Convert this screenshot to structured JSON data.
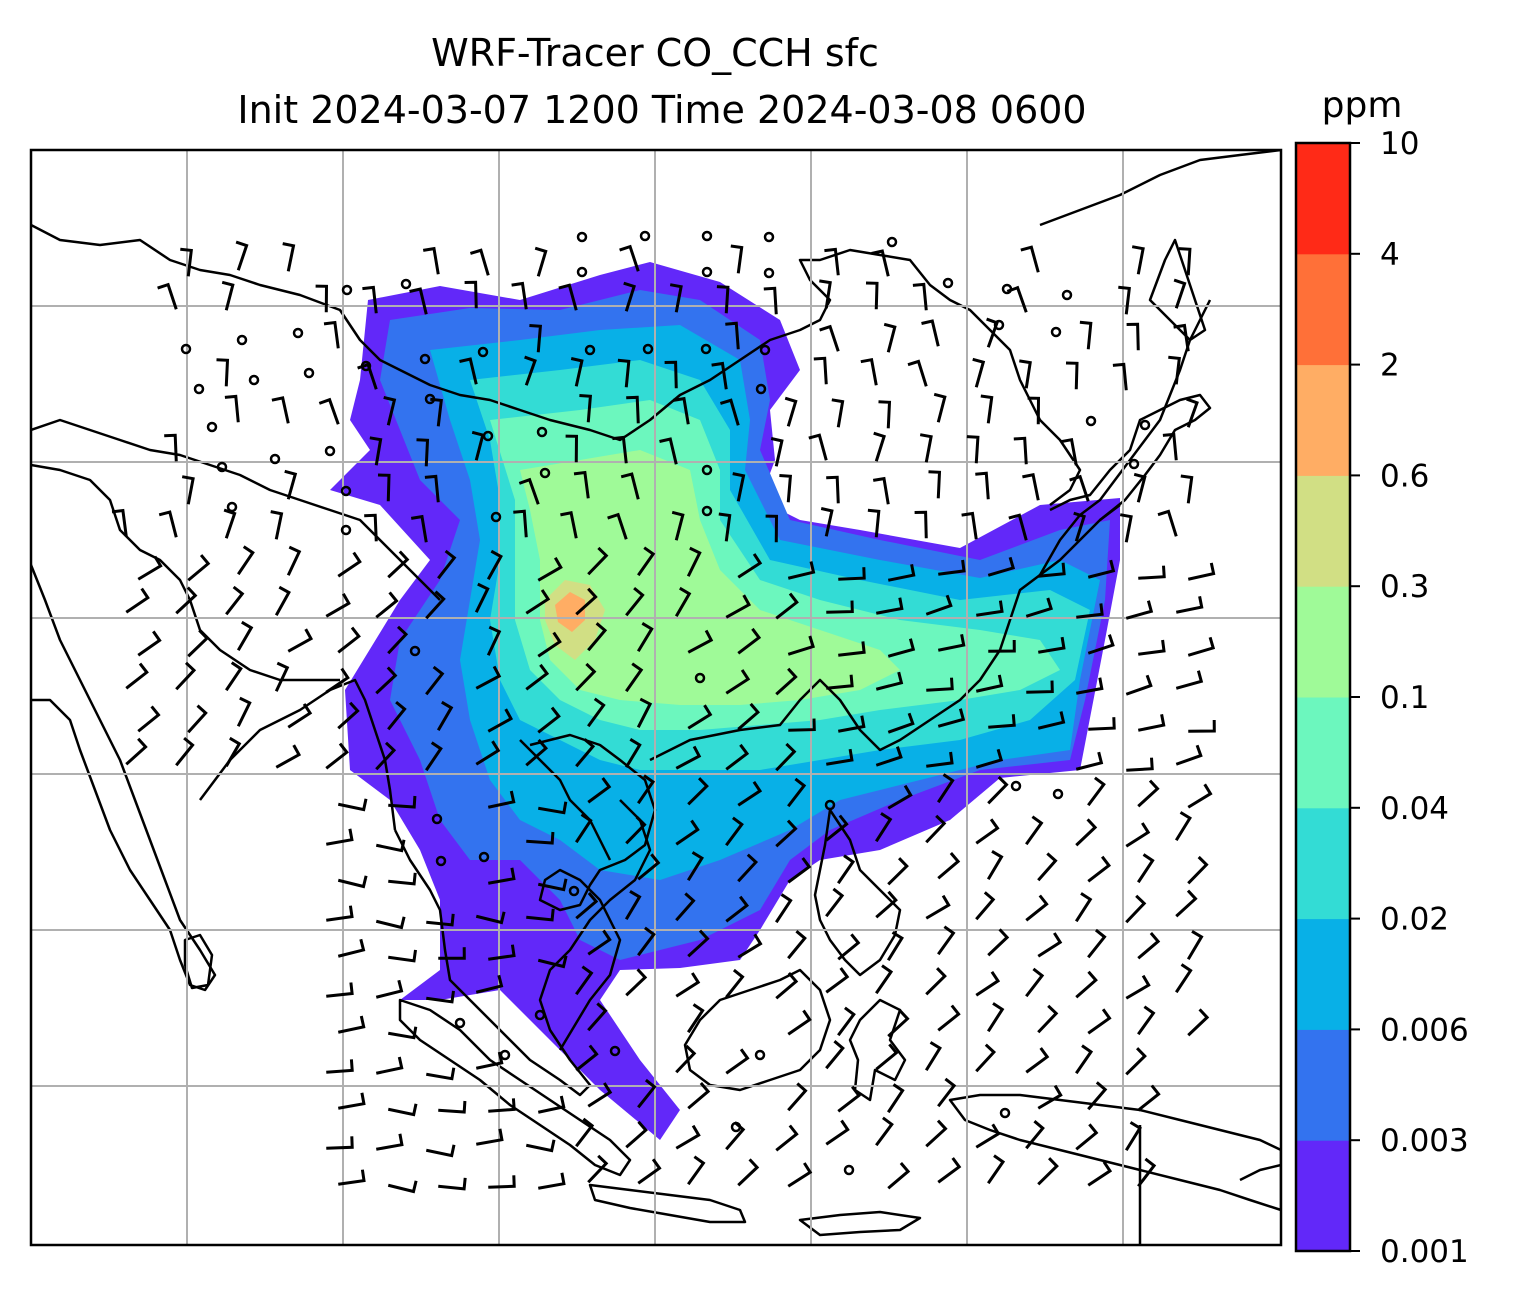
{
  "figure": {
    "title_line1": "WRF-Tracer CO_CCH sfc",
    "title_line2": "Init 2024-03-07 1200 Time 2024-03-08 0600"
  },
  "map": {
    "gridlines": true,
    "grid_color": "#b0b0b0",
    "coastline_color": "#000000",
    "wind_barbs": true
  },
  "colorbar": {
    "unit": "ppm",
    "levels": [
      "0.001",
      "0.003",
      "0.006",
      "0.02",
      "0.04",
      "0.1",
      "0.3",
      "0.6",
      "2",
      "4",
      "10"
    ],
    "colors": [
      "#6228f9",
      "#3373ef",
      "#08b0e7",
      "#33dcd5",
      "#6cf7be",
      "#9ffa98",
      "#d1df84",
      "#ffad64",
      "#ff7038",
      "#ff2a17"
    ]
  }
}
